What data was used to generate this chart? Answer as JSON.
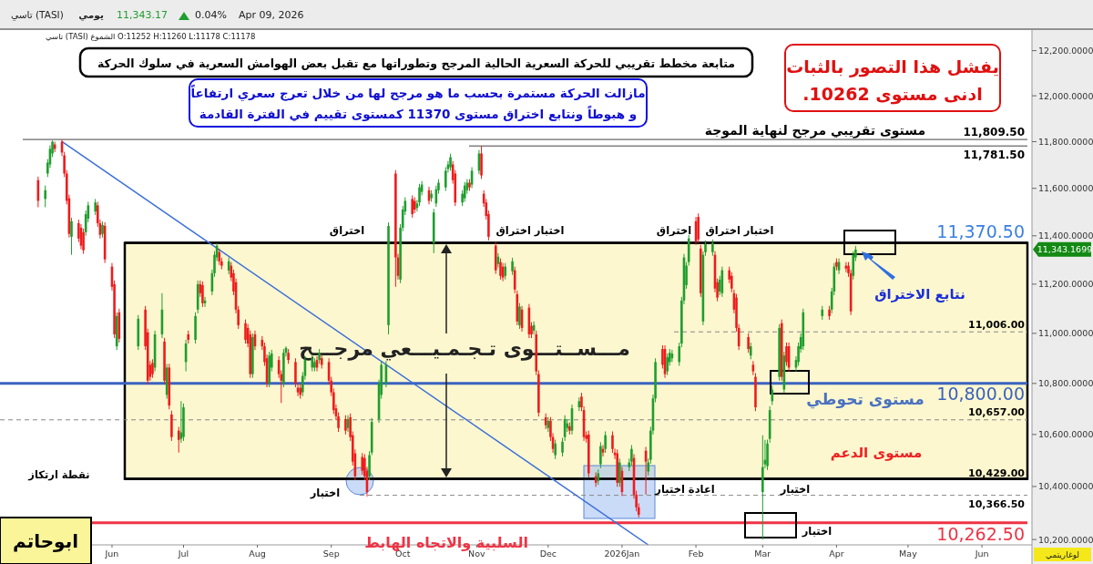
{
  "chart_data": {
    "type": "candlestick",
    "title": "متابعة مخطط تقريبي للحركة السعرية الحالية المرجح وتطوراتها مع تقبل بعض الهوامش السعرية في سلوك الحركة",
    "log": true,
    "xlim": [
      "2025-04-15",
      "2026-06-22"
    ],
    "xticks": [
      {
        "value": "2025-06-01",
        "label": "Jun"
      },
      {
        "value": "2025-07-01",
        "label": "Jul"
      },
      {
        "value": "2025-08-01",
        "label": "Aug"
      },
      {
        "value": "2025-09-01",
        "label": "Sep"
      },
      {
        "value": "2025-10-01",
        "label": "Oct"
      },
      {
        "value": "2025-11-01",
        "label": "Nov"
      },
      {
        "value": "2025-12-01",
        "label": "Dec"
      },
      {
        "value": "2026-01-01",
        "label": "2026Jan"
      },
      {
        "value": "2026-02-01",
        "label": "Feb"
      },
      {
        "value": "2026-03-01",
        "label": "Mar"
      },
      {
        "value": "2026-04-01",
        "label": "Apr"
      },
      {
        "value": "2026-05-01",
        "label": "May"
      },
      {
        "value": "2026-06-01",
        "label": "Jun"
      }
    ],
    "ylim": [
      10180,
      12280
    ],
    "yticks": [
      {
        "value": 10200,
        "label": "10,200.0000"
      },
      {
        "value": 10400,
        "label": "10,400.0000"
      },
      {
        "value": 10600,
        "label": "10,600.0000"
      },
      {
        "value": 10800,
        "label": "10,800.0000"
      },
      {
        "value": 11000,
        "label": "11,000.0000"
      },
      {
        "value": 11200,
        "label": "11,200.0000"
      },
      {
        "value": 11400,
        "label": "11,400.0000"
      },
      {
        "value": 11600,
        "label": "11,600.0000"
      },
      {
        "value": 11800,
        "label": "11,800.0000"
      },
      {
        "value": 12000,
        "label": "12,000.0000"
      },
      {
        "value": 12200,
        "label": "12,200.0000"
      }
    ],
    "x": [
      "2025-05-01",
      "2025-05-04",
      "2025-05-05",
      "2025-05-06",
      "2025-05-07",
      "2025-05-08",
      "2025-05-11",
      "2025-05-12",
      "2025-05-13",
      "2025-05-14",
      "2025-05-15",
      "2025-05-18",
      "2025-05-19",
      "2025-05-20",
      "2025-05-21",
      "2025-05-22",
      "2025-05-25",
      "2025-05-26",
      "2025-05-27",
      "2025-05-28",
      "2025-05-29",
      "2025-06-01",
      "2025-06-02",
      "2025-06-03",
      "2025-06-04",
      "2025-06-12",
      "2025-06-15",
      "2025-06-16",
      "2025-06-17",
      "2025-06-18",
      "2025-06-19",
      "2025-06-22",
      "2025-06-23",
      "2025-06-24",
      "2025-06-25",
      "2025-06-26",
      "2025-06-29",
      "2025-06-30",
      "2025-07-01",
      "2025-07-02",
      "2025-07-03",
      "2025-07-06",
      "2025-07-07",
      "2025-07-08",
      "2025-07-09",
      "2025-07-10",
      "2025-07-13",
      "2025-07-14",
      "2025-07-15",
      "2025-07-16",
      "2025-07-17",
      "2025-07-20",
      "2025-07-21",
      "2025-07-22",
      "2025-07-23",
      "2025-07-24",
      "2025-07-27",
      "2025-07-28",
      "2025-07-29",
      "2025-07-30",
      "2025-07-31",
      "2025-08-03",
      "2025-08-04",
      "2025-08-05",
      "2025-08-06",
      "2025-08-07",
      "2025-08-10",
      "2025-08-11",
      "2025-08-12",
      "2025-08-13",
      "2025-08-14",
      "2025-08-17",
      "2025-08-18",
      "2025-08-19",
      "2025-08-20",
      "2025-08-21",
      "2025-08-24",
      "2025-08-25",
      "2025-08-26",
      "2025-08-27",
      "2025-08-28",
      "2025-08-31",
      "2025-09-01",
      "2025-09-02",
      "2025-09-03",
      "2025-09-04",
      "2025-09-07",
      "2025-09-08",
      "2025-09-09",
      "2025-09-10",
      "2025-09-11",
      "2025-09-14",
      "2025-09-15",
      "2025-09-16",
      "2025-09-17",
      "2025-09-18",
      "2025-09-21",
      "2025-09-22",
      "2025-09-24",
      "2025-09-25",
      "2025-09-28",
      "2025-09-29",
      "2025-09-30",
      "2025-10-01",
      "2025-10-02",
      "2025-10-05",
      "2025-10-06",
      "2025-10-07",
      "2025-10-08",
      "2025-10-09",
      "2025-10-12",
      "2025-10-13",
      "2025-10-14",
      "2025-10-15",
      "2025-10-16",
      "2025-10-19",
      "2025-10-20",
      "2025-10-21",
      "2025-10-22",
      "2025-10-23",
      "2025-10-26",
      "2025-10-27",
      "2025-10-28",
      "2025-10-29",
      "2025-10-30",
      "2025-11-02",
      "2025-11-03",
      "2025-11-04",
      "2025-11-05",
      "2025-11-06",
      "2025-11-09",
      "2025-11-10",
      "2025-11-11",
      "2025-11-12",
      "2025-11-13",
      "2025-11-16",
      "2025-11-17",
      "2025-11-18",
      "2025-11-19",
      "2025-11-20",
      "2025-11-23",
      "2025-11-24",
      "2025-11-25",
      "2025-11-26",
      "2025-11-27",
      "2025-11-30",
      "2025-12-01",
      "2025-12-02",
      "2025-12-03",
      "2025-12-04",
      "2025-12-07",
      "2025-12-08",
      "2025-12-09",
      "2025-12-10",
      "2025-12-11",
      "2025-12-14",
      "2025-12-15",
      "2025-12-16",
      "2025-12-17",
      "2025-12-18",
      "2025-12-21",
      "2025-12-22",
      "2025-12-23",
      "2025-12-24",
      "2025-12-25",
      "2025-12-28",
      "2025-12-29",
      "2025-12-30",
      "2025-12-31",
      "2026-01-01",
      "2026-01-04",
      "2026-01-05",
      "2026-01-06",
      "2026-01-07",
      "2026-01-08",
      "2026-01-11",
      "2026-01-12",
      "2026-01-13",
      "2026-01-14",
      "2026-01-15",
      "2026-01-18",
      "2026-01-19",
      "2026-01-20",
      "2026-01-21",
      "2026-01-22",
      "2026-01-25",
      "2026-01-26",
      "2026-01-27",
      "2026-01-28",
      "2026-01-29",
      "2026-02-01",
      "2026-02-02",
      "2026-02-03",
      "2026-02-04",
      "2026-02-05",
      "2026-02-08",
      "2026-02-09",
      "2026-02-10",
      "2026-02-11",
      "2026-02-12",
      "2026-02-15",
      "2026-02-16",
      "2026-02-17",
      "2026-02-18",
      "2026-02-19",
      "2026-02-23",
      "2026-02-24",
      "2026-02-25",
      "2026-02-26",
      "2026-03-01",
      "2026-03-02",
      "2026-03-03",
      "2026-03-04",
      "2026-03-05",
      "2026-03-08",
      "2026-03-09",
      "2026-03-10",
      "2026-03-11",
      "2026-03-12",
      "2026-03-15",
      "2026-03-16",
      "2026-03-17",
      "2026-03-18",
      "2026-03-26",
      "2026-03-29",
      "2026-03-30",
      "2026-03-31",
      "2026-04-01",
      "2026-04-02",
      "2026-04-05",
      "2026-04-06",
      "2026-04-07",
      "2026-04-08",
      "2026-04-09"
    ],
    "ohlc": [
      [
        11635,
        11650,
        11520,
        11547
      ],
      [
        11555,
        11612,
        11520,
        11592
      ],
      [
        11663,
        11725,
        11648,
        11710
      ],
      [
        11702,
        11784,
        11687,
        11769
      ],
      [
        11749,
        11805,
        11734,
        11800
      ],
      [
        11788,
        11800,
        11755,
        11769
      ],
      [
        11800,
        11809.5,
        11738,
        11753
      ],
      [
        11741,
        11756,
        11648,
        11663
      ],
      [
        11663,
        11678,
        11532,
        11547
      ],
      [
        11558,
        11573,
        11393,
        11408
      ],
      [
        11396,
        11476,
        11321,
        11461
      ],
      [
        11453,
        11468,
        11374,
        11389
      ],
      [
        11434,
        11449,
        11344,
        11359
      ],
      [
        11415,
        11430,
        11325,
        11340
      ],
      [
        11415,
        11506,
        11400,
        11491
      ],
      [
        11472,
        11543,
        11457,
        11528
      ],
      [
        11502,
        11555,
        11487,
        11540
      ],
      [
        11528,
        11543,
        11438,
        11453
      ],
      [
        11453,
        11468,
        11389,
        11404
      ],
      [
        11408,
        11460,
        11393,
        11445
      ],
      [
        11442,
        11457,
        11287,
        11302
      ],
      [
        11272,
        11287,
        11174,
        11189
      ],
      [
        11200,
        11215,
        10981,
        10996
      ],
      [
        10948,
        11085,
        10933,
        11070
      ],
      [
        11085,
        11100,
        10963,
        10978
      ],
      [
        10948,
        11074,
        10933,
        11059
      ],
      [
        11096,
        11111,
        10933,
        10948
      ],
      [
        11004,
        11019,
        10796,
        10811
      ],
      [
        10874,
        10889,
        10811,
        10826
      ],
      [
        10881,
        10896,
        10822,
        10837
      ],
      [
        10863,
        11011,
        10848,
        10996
      ],
      [
        10996,
        11163,
        10981,
        11096
      ],
      [
        10967,
        10982,
        10796,
        10811
      ],
      [
        10755,
        10878,
        10740,
        10863
      ],
      [
        10863,
        10878,
        10698,
        10713
      ],
      [
        10678,
        10693,
        10575,
        10590
      ],
      [
        10615,
        10630,
        10530,
        10579
      ],
      [
        10583,
        10730,
        10568,
        10608
      ],
      [
        10590,
        10721,
        10575,
        10706
      ],
      [
        10885,
        10974,
        10848,
        10959
      ],
      [
        10996,
        11011,
        10959,
        10974
      ],
      [
        10974,
        11085,
        10959,
        11070
      ],
      [
        11096,
        11215,
        11081,
        11200
      ],
      [
        11200,
        11215,
        11148,
        11163
      ],
      [
        11196,
        11211,
        11107,
        11122
      ],
      [
        11122,
        11148,
        11107,
        11133
      ],
      [
        11170,
        11260,
        11155,
        11245
      ],
      [
        11245,
        11336,
        11230,
        11321
      ],
      [
        11310,
        11370,
        11295,
        11359
      ],
      [
        11332,
        11347,
        11279,
        11294
      ],
      [
        11294,
        11309,
        11261,
        11276
      ],
      [
        11256,
        11310,
        11241,
        11294
      ],
      [
        11276,
        11291,
        11212,
        11227
      ],
      [
        11245,
        11260,
        11155,
        11170
      ],
      [
        11208,
        11223,
        11081,
        11096
      ],
      [
        11096,
        11111,
        11018,
        11033
      ],
      [
        11041,
        11056,
        10959,
        10974
      ],
      [
        11022,
        11037,
        10944,
        10959
      ],
      [
        10996,
        11011,
        10822,
        10837
      ],
      [
        10837,
        11000,
        10822,
        10985
      ],
      [
        10996,
        11011,
        10933,
        10948
      ],
      [
        10974,
        10989,
        10933,
        10948
      ],
      [
        10948,
        10963,
        10870,
        10885
      ],
      [
        10900,
        10915,
        10785,
        10800
      ],
      [
        10800,
        10926,
        10785,
        10911
      ],
      [
        10863,
        10934,
        10848,
        10919
      ],
      [
        10893,
        10908,
        10822,
        10837
      ],
      [
        10837,
        10852,
        10723,
        10811
      ],
      [
        10800,
        10937,
        10785,
        10922
      ],
      [
        10922,
        10948,
        10907,
        10941
      ],
      [
        10922,
        10937,
        10878,
        10893
      ],
      [
        10885,
        10900,
        10785,
        10800
      ],
      [
        10783,
        10798,
        10750,
        10765
      ],
      [
        10783,
        10798,
        10740,
        10755
      ],
      [
        10765,
        10845,
        10750,
        10830
      ],
      [
        10830,
        10908,
        10815,
        10893
      ],
      [
        10863,
        10915,
        10848,
        10900
      ],
      [
        10863,
        10900,
        10848,
        10885
      ],
      [
        10893,
        10908,
        10848,
        10863
      ],
      [
        10893,
        10937,
        10878,
        10922
      ],
      [
        10900,
        10915,
        10859,
        10874
      ],
      [
        10885,
        10900,
        10796,
        10811
      ],
      [
        10811,
        10826,
        10750,
        10765
      ],
      [
        10765,
        10780,
        10680,
        10695
      ],
      [
        10702,
        10717,
        10656,
        10671
      ],
      [
        10671,
        10686,
        10610,
        10625
      ],
      [
        10660,
        10675,
        10600,
        10615
      ],
      [
        10625,
        10675,
        10610,
        10660
      ],
      [
        10667,
        10682,
        10575,
        10590
      ],
      [
        10597,
        10612,
        10480,
        10495
      ],
      [
        10527,
        10542,
        10424,
        10439
      ],
      [
        10513,
        10528,
        10445,
        10460
      ],
      [
        10509,
        10524,
        10424,
        10439
      ],
      [
        10460,
        10475,
        10362,
        10379
      ],
      [
        10439,
        10535,
        10424,
        10520
      ],
      [
        10530,
        10664,
        10520,
        10649
      ],
      [
        10660,
        10815,
        10645,
        10800
      ],
      [
        10755,
        10889,
        10740,
        10874
      ],
      [
        10800,
        10889,
        10785,
        10874
      ],
      [
        11033,
        11456,
        10996,
        11441
      ],
      [
        11663,
        11678,
        11189,
        11310
      ],
      [
        11310,
        11325,
        11219,
        11234
      ],
      [
        11219,
        11449,
        11204,
        11434
      ],
      [
        11434,
        11525,
        11419,
        11510
      ],
      [
        11502,
        11562,
        11487,
        11547
      ],
      [
        11555,
        11570,
        11476,
        11491
      ],
      [
        11547,
        11562,
        11495,
        11510
      ],
      [
        11517,
        11551,
        11502,
        11536
      ],
      [
        11540,
        11619,
        11525,
        11604
      ],
      [
        11585,
        11631,
        11570,
        11616
      ],
      [
        11592,
        11607,
        11532,
        11547
      ],
      [
        11558,
        11592,
        11543,
        11577
      ],
      [
        11370,
        11513,
        11328,
        11498
      ],
      [
        11536,
        11611,
        11521,
        11596
      ],
      [
        11592,
        11639,
        11577,
        11624
      ],
      [
        11604,
        11690,
        11589,
        11675
      ],
      [
        11682,
        11717,
        11667,
        11702
      ],
      [
        11690,
        11748,
        11675,
        11733
      ],
      [
        11702,
        11717,
        11620,
        11635
      ],
      [
        11663,
        11678,
        11525,
        11540
      ],
      [
        11540,
        11592,
        11525,
        11577
      ],
      [
        11558,
        11627,
        11543,
        11612
      ],
      [
        11592,
        11639,
        11577,
        11624
      ],
      [
        11624,
        11639,
        11589,
        11604
      ],
      [
        11616,
        11690,
        11601,
        11675
      ],
      [
        11675,
        11764,
        11660,
        11749
      ],
      [
        11749,
        11781.5,
        11640,
        11655
      ],
      [
        11577,
        11592,
        11521,
        11536
      ],
      [
        11540,
        11555,
        11468,
        11483
      ],
      [
        11491,
        11506,
        11381,
        11396
      ],
      [
        11359,
        11374,
        11242,
        11257
      ],
      [
        11283,
        11328,
        11268,
        11313
      ],
      [
        11291,
        11306,
        11219,
        11234
      ],
      [
        11272,
        11287,
        11212,
        11227
      ],
      [
        11234,
        11287,
        11219,
        11272
      ],
      [
        11253,
        11309,
        11238,
        11294
      ],
      [
        11257,
        11272,
        11163,
        11178
      ],
      [
        11159,
        11174,
        11033,
        11048
      ],
      [
        11033,
        11123,
        11018,
        11108
      ],
      [
        11096,
        11111,
        11007,
        11022
      ],
      [
        11104,
        11119,
        10981,
        10996
      ],
      [
        11030,
        11045,
        10981,
        10996
      ],
      [
        11011,
        11048,
        10996,
        11033
      ],
      [
        10996,
        11011,
        10833,
        10848
      ],
      [
        10837,
        10852,
        10670,
        10685
      ],
      [
        10667,
        10682,
        10621,
        10636
      ],
      [
        10625,
        10668,
        10610,
        10653
      ],
      [
        10653,
        10668,
        10575,
        10590
      ],
      [
        10590,
        10605,
        10529,
        10544
      ],
      [
        10520,
        10580,
        10505,
        10565
      ],
      [
        10530,
        10587,
        10515,
        10572
      ],
      [
        10590,
        10675,
        10575,
        10660
      ],
      [
        10625,
        10658,
        10610,
        10643
      ],
      [
        10632,
        10647,
        10600,
        10615
      ],
      [
        10615,
        10717,
        10600,
        10702
      ],
      [
        10706,
        10745,
        10691,
        10730
      ],
      [
        10748,
        10763,
        10691,
        10706
      ],
      [
        10695,
        10710,
        10575,
        10590
      ],
      [
        10597,
        10612,
        10568,
        10583
      ],
      [
        10600,
        10615,
        10435,
        10450
      ],
      [
        10439,
        10454,
        10399,
        10414
      ],
      [
        10421,
        10465,
        10406,
        10450
      ],
      [
        10485,
        10570,
        10470,
        10555
      ],
      [
        10544,
        10559,
        10515,
        10530
      ],
      [
        10544,
        10612,
        10529,
        10597
      ],
      [
        10597,
        10612,
        10529,
        10544
      ],
      [
        10530,
        10545,
        10505,
        10520
      ],
      [
        10527,
        10542,
        10399,
        10414
      ],
      [
        10414,
        10507,
        10399,
        10492
      ],
      [
        10460,
        10475,
        10364,
        10379
      ],
      [
        10474,
        10507,
        10459,
        10492
      ],
      [
        10495,
        10559,
        10480,
        10544
      ],
      [
        10509,
        10524,
        10354,
        10369
      ],
      [
        10369,
        10384,
        10306,
        10321
      ],
      [
        10321,
        10336,
        10283,
        10293
      ],
      [
        10537,
        10552,
        10369,
        10495
      ],
      [
        10457,
        10507,
        10442,
        10492
      ],
      [
        10502,
        10630,
        10487,
        10615
      ],
      [
        10615,
        10756,
        10600,
        10741
      ],
      [
        10741,
        10900,
        10726,
        10885
      ],
      [
        10937,
        10952,
        10859,
        10874
      ],
      [
        10937,
        10952,
        10822,
        10837
      ],
      [
        10848,
        10919,
        10833,
        10904
      ],
      [
        10885,
        10937,
        10870,
        10922
      ],
      [
        10900,
        10934,
        10885,
        10919
      ],
      [
        10885,
        10963,
        10870,
        10948
      ],
      [
        10959,
        11148,
        10944,
        11133
      ],
      [
        11133,
        11325,
        11118,
        11310
      ],
      [
        11196,
        11291,
        11181,
        11276
      ],
      [
        11291,
        11404,
        11276,
        11389
      ],
      [
        11461,
        11479,
        11362,
        11377
      ],
      [
        11479,
        11494,
        11370,
        11385
      ],
      [
        11347,
        11362,
        11148,
        11163
      ],
      [
        11048,
        11336,
        11033,
        11321
      ],
      [
        11332,
        11381,
        11317,
        11366
      ],
      [
        11332,
        11385,
        11317,
        11370
      ],
      [
        11321,
        11336,
        11167,
        11182
      ],
      [
        11208,
        11223,
        11130,
        11145
      ],
      [
        11170,
        11234,
        11155,
        11219
      ],
      [
        11163,
        11272,
        11148,
        11257
      ],
      [
        11257,
        11272,
        11204,
        11219
      ],
      [
        11234,
        11249,
        11167,
        11182
      ],
      [
        11163,
        11178,
        11081,
        11096
      ],
      [
        11145,
        11160,
        11007,
        11022
      ],
      [
        11022,
        11037,
        10933,
        10948
      ],
      [
        10985,
        11000,
        10922,
        10937
      ],
      [
        10911,
        10963,
        10896,
        10948
      ],
      [
        10874,
        10889,
        10833,
        10848
      ],
      [
        10826,
        10841,
        10691,
        10706
      ],
      [
        10379,
        10597,
        10200,
        10474
      ],
      [
        10485,
        10579,
        10470,
        10502
      ],
      [
        10478,
        10580,
        10463,
        10565
      ],
      [
        10583,
        10710,
        10568,
        10695
      ],
      [
        10730,
        10791,
        10715,
        10776
      ],
      [
        10826,
        11037,
        10811,
        11022
      ],
      [
        11041,
        11056,
        10811,
        10826
      ],
      [
        10776,
        10926,
        10761,
        10911
      ],
      [
        10948,
        10963,
        10870,
        10885
      ],
      [
        10948,
        10963,
        10848,
        10863
      ],
      [
        10863,
        10908,
        10848,
        10893
      ],
      [
        10885,
        10963,
        10870,
        10948
      ],
      [
        10937,
        11000,
        10922,
        10985
      ],
      [
        10948,
        11100,
        10933,
        11085
      ],
      [
        11070,
        11111,
        11055,
        11096
      ],
      [
        11096,
        11111,
        11055,
        11070
      ],
      [
        11096,
        11185,
        11081,
        11170
      ],
      [
        11170,
        11287,
        11155,
        11272
      ],
      [
        11291,
        11306,
        11257,
        11272
      ],
      [
        11257,
        11306,
        11242,
        11291
      ],
      [
        11276,
        11291,
        11249,
        11264
      ],
      [
        11276,
        11291,
        11230,
        11245
      ],
      [
        11245,
        11260,
        11074,
        11089
      ],
      [
        11234,
        11336,
        11219,
        11321
      ],
      [
        11310,
        11358,
        11295,
        11343
      ]
    ],
    "series": [
      {
        "type": "line",
        "x": [
          "2025-05-11",
          "2026-01-12"
        ],
        "values": [
          11800,
          10180
        ],
        "color": "#3b6fd8"
      }
    ],
    "bands": [
      {
        "axis": "y",
        "from": 10429,
        "to": 11370.5,
        "color": "#fdf7cf"
      }
    ],
    "ref_lines": [
      {
        "axis": "y",
        "value": 11809.5,
        "label": "11,809.50",
        "color": "#444444"
      },
      {
        "axis": "y",
        "value": 11781.5,
        "label": "11,781.50",
        "color": "#444444"
      },
      {
        "axis": "y",
        "value": 11370.5,
        "label": "11,370.50",
        "color": "#000000"
      },
      {
        "axis": "y",
        "value": 11006,
        "label": "11,006.00",
        "color": "#888888",
        "line_style": "dashed"
      },
      {
        "axis": "y",
        "value": 10800,
        "label": "10,800.00",
        "color": "#3a62c0"
      },
      {
        "axis": "y",
        "value": 10657,
        "label": "10,657.00",
        "color": "#888888",
        "line_style": "dashed"
      },
      {
        "axis": "y",
        "value": 10429,
        "label": "10,429.00",
        "color": "#000000"
      },
      {
        "axis": "y",
        "value": 10366.5,
        "label": "10,366.50",
        "color": "#888888",
        "line_style": "dashed"
      },
      {
        "axis": "y",
        "value": 10262.5,
        "label": "10,262.50",
        "color": "#ee3344"
      }
    ],
    "annotations": [
      "تاسي (TASI)",
      "يومي",
      "11,343.17",
      "0.04%",
      "Apr 09, 2026",
      "تاسي (TASI)   الشموع   O:11252   H:11260   L:11178   C:11178",
      "مازالت الحركة مستمرة بحسب ما هو مرجح لها من خلال تعرج سعري ارتفاعاً",
      "و هبوطاً ونتابع اختراق مستوى 11370 كمستوى تقييم في الفترة القادمة",
      "يفشل هذا التصور بالثبات",
      "ادنى مستوى 10262.",
      "مستوى تقريبي مرجح لنهاية الموجة",
      "اختراق",
      "اختبار اختراق",
      "اختراق",
      "اختبار اختراق",
      "مـــســتـــوى تـجـمـيـــعي مرجـــح",
      "نقطة ارتكاز",
      "اختبار",
      "اعادة اختبار",
      "اختبار",
      "نتابع الاختراق",
      "مستوى تحوطي",
      "مستوى الدعم",
      "السلبية والاتجاه الهابط",
      "اختبار",
      "ابوحاتم",
      "لوغاريتمي",
      "11,343.1699"
    ]
  }
}
